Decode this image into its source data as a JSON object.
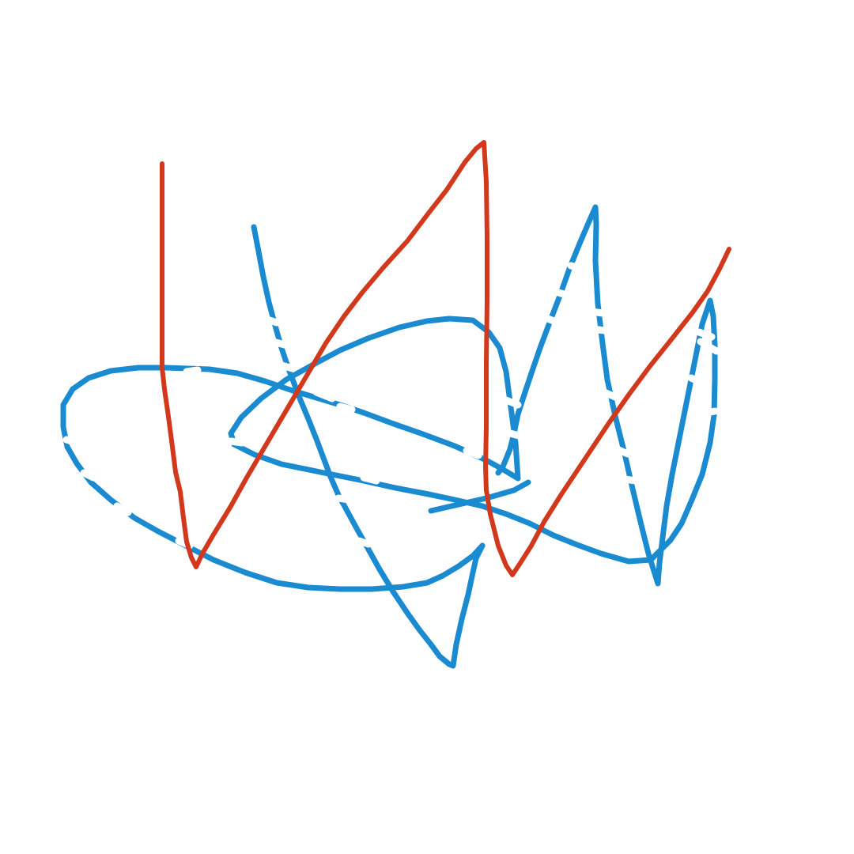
{
  "drawing": {
    "background": "#ffffff",
    "blue_stroke_color": "#1a8bd0",
    "red_stroke_color": "#d2381c",
    "stroke_count": {
      "blue": 1,
      "red": 1
    }
  }
}
